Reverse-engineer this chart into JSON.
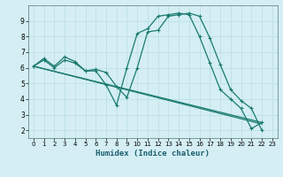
{
  "xlabel": "Humidex (Indice chaleur)",
  "background_color": "#d4eef4",
  "grid_color": "#b8dde4",
  "line_color": "#1a7a6e",
  "xlim": [
    -0.5,
    23.5
  ],
  "ylim": [
    1.5,
    10.0
  ],
  "xticks": [
    0,
    1,
    2,
    3,
    4,
    5,
    6,
    7,
    8,
    9,
    10,
    11,
    12,
    13,
    14,
    15,
    16,
    17,
    18,
    19,
    20,
    21,
    22,
    23
  ],
  "yticks": [
    2,
    3,
    4,
    5,
    6,
    7,
    8,
    9
  ],
  "line1_x": [
    0,
    1,
    2,
    3,
    4,
    5,
    6,
    7,
    8,
    9,
    10,
    11,
    12,
    13,
    14,
    15,
    16,
    17,
    18,
    19,
    20,
    21,
    22
  ],
  "line1_y": [
    6.1,
    6.6,
    6.1,
    6.7,
    6.4,
    5.8,
    5.8,
    4.9,
    3.6,
    6.0,
    8.2,
    8.5,
    9.3,
    9.4,
    9.5,
    9.4,
    8.0,
    6.3,
    4.6,
    4.0,
    3.4,
    2.1,
    2.5
  ],
  "line2_x": [
    0,
    1,
    2,
    3,
    4,
    5,
    6,
    7,
    8,
    9,
    10,
    11,
    12,
    13,
    14,
    15,
    16,
    17,
    18,
    19,
    20,
    21,
    22
  ],
  "line2_y": [
    6.1,
    6.5,
    6.0,
    6.5,
    6.3,
    5.8,
    5.9,
    5.7,
    4.8,
    4.1,
    6.0,
    8.3,
    8.4,
    9.3,
    9.4,
    9.5,
    9.3,
    7.9,
    6.2,
    4.6,
    3.9,
    3.4,
    2.0
  ],
  "line3_x": [
    0,
    22
  ],
  "line3_y": [
    6.1,
    2.5
  ],
  "line4_x": [
    0,
    22
  ],
  "line4_y": [
    6.1,
    2.4
  ]
}
